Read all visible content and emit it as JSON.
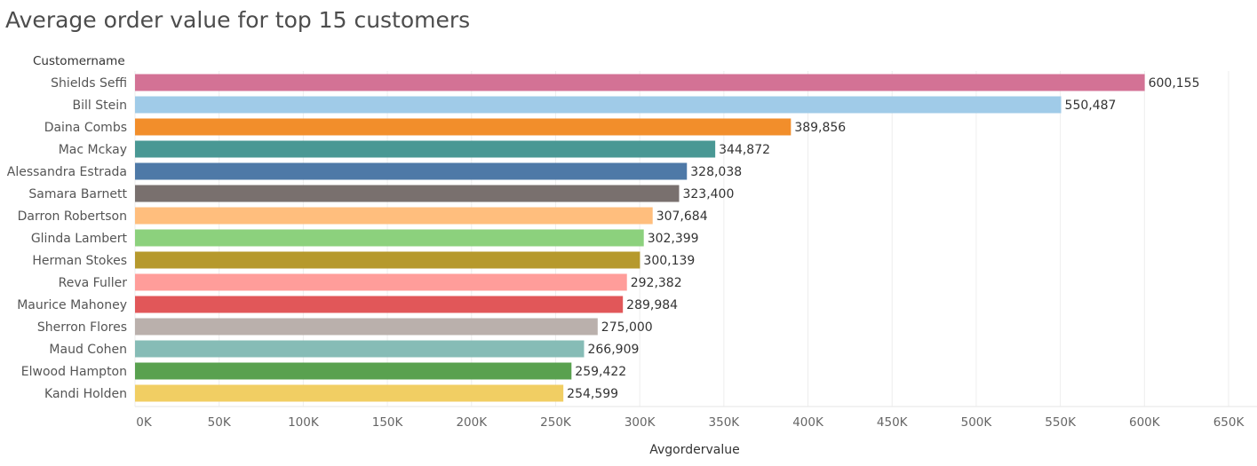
{
  "title": "Average order value for top 15 customers",
  "chart_data": {
    "type": "bar",
    "orientation": "horizontal",
    "title": "Average order value for top 15 customers",
    "row_header": "Customername",
    "xlabel": "Avgordervalue",
    "ylabel": "Customername",
    "xlim": [
      0,
      650000
    ],
    "x_ticks": [
      0,
      50000,
      100000,
      150000,
      200000,
      250000,
      300000,
      350000,
      400000,
      450000,
      500000,
      550000,
      600000,
      650000
    ],
    "x_tick_labels": [
      "0K",
      "50K",
      "100K",
      "150K",
      "200K",
      "250K",
      "300K",
      "350K",
      "400K",
      "450K",
      "500K",
      "550K",
      "600K",
      "650K"
    ],
    "grid": true,
    "categories": [
      "Shields Seffi",
      "Bill Stein",
      "Daina Combs",
      "Mac Mckay",
      "Alessandra Estrada",
      "Samara Barnett",
      "Darron Robertson",
      "Glinda Lambert",
      "Herman Stokes",
      "Reva Fuller",
      "Maurice Mahoney",
      "Sherron Flores",
      "Maud Cohen",
      "Elwood Hampton",
      "Kandi Holden"
    ],
    "values": [
      600155,
      550487,
      389856,
      344872,
      328038,
      323400,
      307684,
      302399,
      300139,
      292382,
      289984,
      275000,
      266909,
      259422,
      254599
    ],
    "value_labels": [
      "600,155",
      "550,487",
      "389,856",
      "344,872",
      "328,038",
      "323,400",
      "307,684",
      "302,399",
      "300,139",
      "292,382",
      "289,984",
      "275,000",
      "266,909",
      "259,422",
      "254,599"
    ],
    "colors": [
      "#d37295",
      "#a0cbe8",
      "#f28e2b",
      "#499894",
      "#4e79a7",
      "#79706e",
      "#ffbe7d",
      "#8cd17d",
      "#b6992d",
      "#ff9d9a",
      "#e15759",
      "#bab0ac",
      "#86bcb6",
      "#59a14f",
      "#f1ce63"
    ]
  }
}
